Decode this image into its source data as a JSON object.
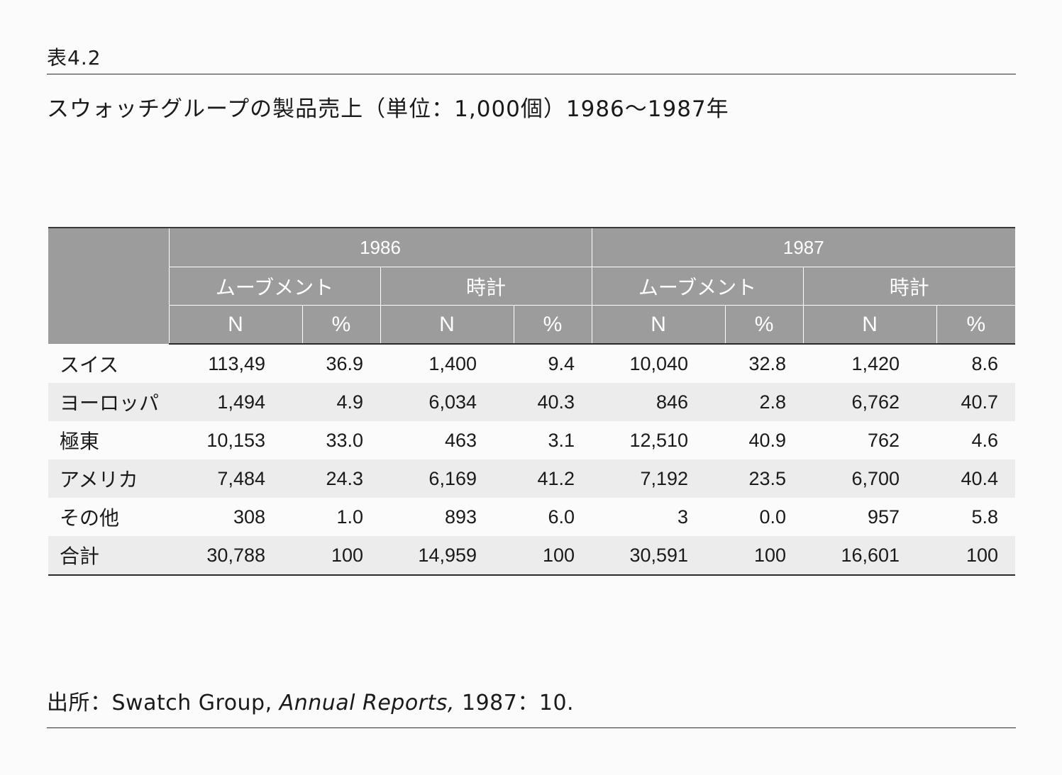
{
  "table_label": "表4.2",
  "caption": "スウォッチグループの製品売上（単位：1,000個）1986〜1987年",
  "header": {
    "years": [
      "1986",
      "1987"
    ],
    "groups": [
      "ムーブメント",
      "時計",
      "ムーブメント",
      "時計"
    ],
    "sub_n": "N",
    "sub_pct": "%"
  },
  "rows": [
    {
      "region": "スイス",
      "values": [
        "113,49",
        "36.9",
        "1,400",
        "9.4",
        "10,040",
        "32.8",
        "1,420",
        "8.6"
      ]
    },
    {
      "region": "ヨーロッパ",
      "values": [
        "1,494",
        "4.9",
        "6,034",
        "40.3",
        "846",
        "2.8",
        "6,762",
        "40.7"
      ]
    },
    {
      "region": "極東",
      "values": [
        "10,153",
        "33.0",
        "463",
        "3.1",
        "12,510",
        "40.9",
        "762",
        "4.6"
      ]
    },
    {
      "region": "アメリカ",
      "values": [
        "7,484",
        "24.3",
        "6,169",
        "41.2",
        "7,192",
        "23.5",
        "6,700",
        "40.4"
      ]
    },
    {
      "region": "その他",
      "values": [
        "308",
        "1.0",
        "893",
        "6.0",
        "3",
        "0.0",
        "957",
        "5.8"
      ]
    },
    {
      "region": "合計",
      "values": [
        "30,788",
        "100",
        "14,959",
        "100",
        "30,591",
        "100",
        "16,601",
        "100"
      ]
    }
  ],
  "source": {
    "prefix": "出所：Swatch Group, ",
    "title": "Annual Reports,",
    "suffix": " 1987：10."
  },
  "colors": {
    "header_bg": "#9c9c9c",
    "stripe_bg": "#ececec"
  }
}
